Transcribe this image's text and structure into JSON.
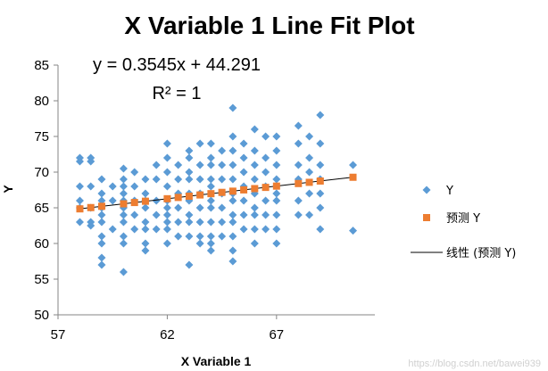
{
  "chart_data": {
    "type": "scatter",
    "title": "X Variable 1 Line Fit  Plot",
    "equation": "y = 0.3545x + 44.291",
    "r_squared": "R² = 1",
    "xlabel": "X Variable 1",
    "ylabel": "Y",
    "xlim": [
      57,
      71.5
    ],
    "ylim": [
      50,
      85
    ],
    "xticks": [
      57,
      62,
      67
    ],
    "yticks": [
      50,
      55,
      60,
      65,
      70,
      75,
      80,
      85
    ],
    "grid": false,
    "legend_position": "right",
    "trendline": {
      "slope": 0.3545,
      "intercept": 44.291,
      "x_range": [
        58,
        70.5
      ]
    },
    "series": [
      {
        "name": "Y",
        "marker": "diamond",
        "color": "#5b9bd5",
        "points": [
          [
            58,
            72
          ],
          [
            58,
            71.5
          ],
          [
            58,
            68
          ],
          [
            58,
            66
          ],
          [
            58,
            65
          ],
          [
            58,
            63
          ],
          [
            58.5,
            72
          ],
          [
            58.5,
            71.5
          ],
          [
            58.5,
            68
          ],
          [
            58.5,
            65
          ],
          [
            58.5,
            63
          ],
          [
            58.5,
            62.5
          ],
          [
            59,
            69
          ],
          [
            59,
            67
          ],
          [
            59,
            66
          ],
          [
            59,
            65
          ],
          [
            59,
            64
          ],
          [
            59,
            63
          ],
          [
            59,
            61
          ],
          [
            59,
            60
          ],
          [
            59,
            58
          ],
          [
            59,
            57
          ],
          [
            59.5,
            68
          ],
          [
            59.5,
            66
          ],
          [
            59.5,
            62
          ],
          [
            60,
            70.5
          ],
          [
            60,
            69
          ],
          [
            60,
            68
          ],
          [
            60,
            67
          ],
          [
            60,
            66
          ],
          [
            60,
            65
          ],
          [
            60,
            64
          ],
          [
            60,
            63
          ],
          [
            60,
            61
          ],
          [
            60,
            60
          ],
          [
            60,
            56
          ],
          [
            60.5,
            70
          ],
          [
            60.5,
            68
          ],
          [
            60.5,
            66
          ],
          [
            60.5,
            64
          ],
          [
            60.5,
            62
          ],
          [
            61,
            69
          ],
          [
            61,
            67
          ],
          [
            61,
            66
          ],
          [
            61,
            65
          ],
          [
            61,
            63
          ],
          [
            61,
            62
          ],
          [
            61,
            60
          ],
          [
            61,
            59
          ],
          [
            61.5,
            71
          ],
          [
            61.5,
            69
          ],
          [
            61.5,
            66
          ],
          [
            61.5,
            64
          ],
          [
            61.5,
            62
          ],
          [
            62,
            74
          ],
          [
            62,
            72
          ],
          [
            62,
            70
          ],
          [
            62,
            68
          ],
          [
            62,
            66
          ],
          [
            62,
            65
          ],
          [
            62,
            64
          ],
          [
            62,
            63
          ],
          [
            62,
            62
          ],
          [
            62,
            60
          ],
          [
            62.5,
            71
          ],
          [
            62.5,
            69
          ],
          [
            62.5,
            67
          ],
          [
            62.5,
            65
          ],
          [
            62.5,
            63
          ],
          [
            62.5,
            61
          ],
          [
            63,
            73
          ],
          [
            63,
            72
          ],
          [
            63,
            70
          ],
          [
            63,
            69
          ],
          [
            63,
            67
          ],
          [
            63,
            66
          ],
          [
            63,
            64
          ],
          [
            63,
            63
          ],
          [
            63,
            61
          ],
          [
            63,
            57
          ],
          [
            63.5,
            74
          ],
          [
            63.5,
            71
          ],
          [
            63.5,
            69
          ],
          [
            63.5,
            67
          ],
          [
            63.5,
            65
          ],
          [
            63.5,
            63
          ],
          [
            63.5,
            61
          ],
          [
            63.5,
            60
          ],
          [
            64,
            74
          ],
          [
            64,
            72
          ],
          [
            64,
            71
          ],
          [
            64,
            69
          ],
          [
            64,
            68
          ],
          [
            64,
            66
          ],
          [
            64,
            65
          ],
          [
            64,
            63
          ],
          [
            64,
            61
          ],
          [
            64,
            60
          ],
          [
            64,
            59
          ],
          [
            64.5,
            73
          ],
          [
            64.5,
            71
          ],
          [
            64.5,
            69
          ],
          [
            64.5,
            67
          ],
          [
            64.5,
            65
          ],
          [
            64.5,
            63
          ],
          [
            64.5,
            61
          ],
          [
            65,
            79
          ],
          [
            65,
            75
          ],
          [
            65,
            73
          ],
          [
            65,
            71
          ],
          [
            65,
            69
          ],
          [
            65,
            67
          ],
          [
            65,
            66
          ],
          [
            65,
            64
          ],
          [
            65,
            63
          ],
          [
            65,
            61
          ],
          [
            65,
            59
          ],
          [
            65,
            57.5
          ],
          [
            65.5,
            74
          ],
          [
            65.5,
            72
          ],
          [
            65.5,
            70
          ],
          [
            65.5,
            68
          ],
          [
            65.5,
            66
          ],
          [
            65.5,
            64
          ],
          [
            65.5,
            62
          ],
          [
            66,
            76
          ],
          [
            66,
            73
          ],
          [
            66,
            71
          ],
          [
            66,
            69
          ],
          [
            66,
            67
          ],
          [
            66,
            65
          ],
          [
            66,
            64
          ],
          [
            66,
            62
          ],
          [
            66,
            60
          ],
          [
            66.5,
            75
          ],
          [
            66.5,
            72
          ],
          [
            66.5,
            70
          ],
          [
            66.5,
            68
          ],
          [
            66.5,
            66
          ],
          [
            66.5,
            64
          ],
          [
            66.5,
            62
          ],
          [
            67,
            75
          ],
          [
            67,
            73
          ],
          [
            67,
            71
          ],
          [
            67,
            69
          ],
          [
            67,
            67
          ],
          [
            67,
            66
          ],
          [
            67,
            64
          ],
          [
            67,
            62
          ],
          [
            67,
            60
          ],
          [
            68,
            76.5
          ],
          [
            68,
            74
          ],
          [
            68,
            71
          ],
          [
            68,
            69
          ],
          [
            68,
            66
          ],
          [
            68,
            64
          ],
          [
            68.5,
            75
          ],
          [
            68.5,
            72
          ],
          [
            68.5,
            70
          ],
          [
            68.5,
            67
          ],
          [
            68.5,
            64
          ],
          [
            69,
            78
          ],
          [
            69,
            74
          ],
          [
            69,
            71
          ],
          [
            69,
            69
          ],
          [
            69,
            67
          ],
          [
            69,
            65
          ],
          [
            69,
            62
          ],
          [
            70.5,
            71
          ],
          [
            70.5,
            61.8
          ]
        ]
      },
      {
        "name": "预测 Y",
        "marker": "square",
        "color": "#ed7d31",
        "points": [
          [
            58,
            64.85
          ],
          [
            58.5,
            65.03
          ],
          [
            59,
            65.21
          ],
          [
            60,
            65.56
          ],
          [
            60.5,
            65.74
          ],
          [
            61,
            65.92
          ],
          [
            62,
            66.27
          ],
          [
            62.5,
            66.45
          ],
          [
            63,
            66.62
          ],
          [
            63.5,
            66.8
          ],
          [
            64,
            66.98
          ],
          [
            64.5,
            67.16
          ],
          [
            65,
            67.33
          ],
          [
            65.5,
            67.51
          ],
          [
            66,
            67.69
          ],
          [
            66.5,
            67.86
          ],
          [
            67,
            68.04
          ],
          [
            68,
            68.4
          ],
          [
            68.5,
            68.57
          ],
          [
            69,
            68.75
          ],
          [
            70.5,
            69.28
          ]
        ]
      },
      {
        "name": "线性 (预测 Y)",
        "marker": "line",
        "color": "#000000"
      }
    ],
    "watermark": "https://blog.csdn.net/bawei939"
  }
}
